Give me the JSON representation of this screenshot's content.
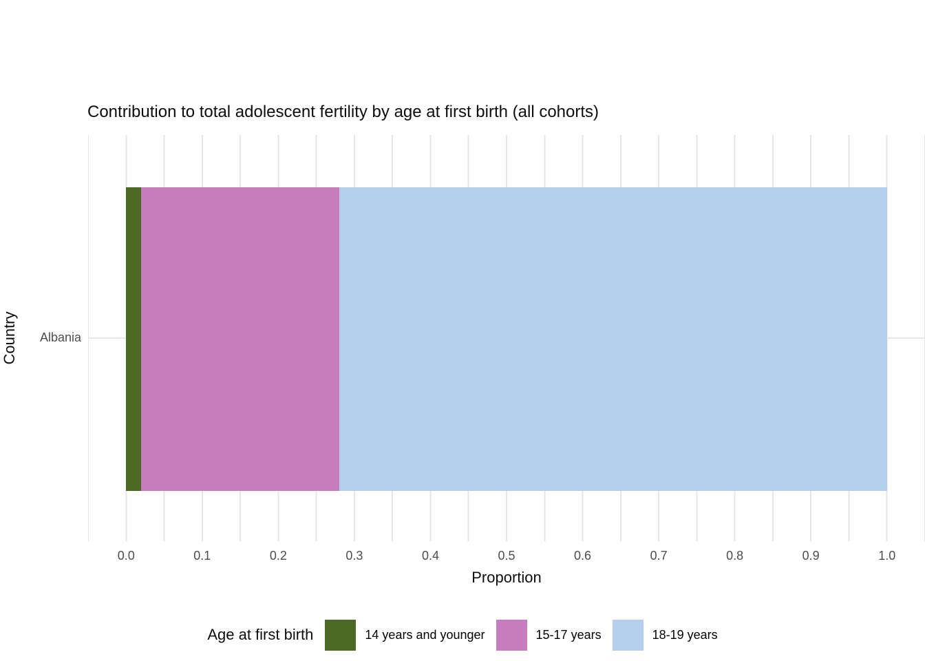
{
  "title": "Contribution to total adolescent fertility by age at first birth (all cohorts)",
  "axes": {
    "x": {
      "label": "Proportion",
      "tick_labels": [
        "0.0",
        "0.1",
        "0.2",
        "0.3",
        "0.4",
        "0.5",
        "0.6",
        "0.7",
        "0.8",
        "0.9",
        "1.0"
      ]
    },
    "y": {
      "label": "Country",
      "tick_labels": [
        "Albania"
      ]
    }
  },
  "legend": {
    "title": "Age at first birth",
    "position": "bottom"
  },
  "chart_data": {
    "type": "bar",
    "orientation": "horizontal",
    "stacked": true,
    "title": "Contribution to total adolescent fertility by age at first birth (all cohorts)",
    "xlabel": "Proportion",
    "ylabel": "Country",
    "categories": [
      "Albania"
    ],
    "series": [
      {
        "name": "14 years and younger",
        "values": [
          0.02
        ],
        "color": "#4c6a25"
      },
      {
        "name": "15-17 years",
        "values": [
          0.26
        ],
        "color": "#c77cbd"
      },
      {
        "name": "18-19 years",
        "values": [
          0.72
        ],
        "color": "#b5ceeb"
      }
    ],
    "xlim": [
      0.0,
      1.0
    ],
    "x_tick_step": 0.1,
    "axis_expansion": 0.05,
    "grid": "vertical major and minor gridlines, light gray on white",
    "legend_position": "bottom"
  },
  "style_colors": {
    "background": "#ffffff",
    "gridline": "#e6e6e6",
    "axis_text": "#4d4d4d",
    "title_text": "#0d0d0d"
  }
}
